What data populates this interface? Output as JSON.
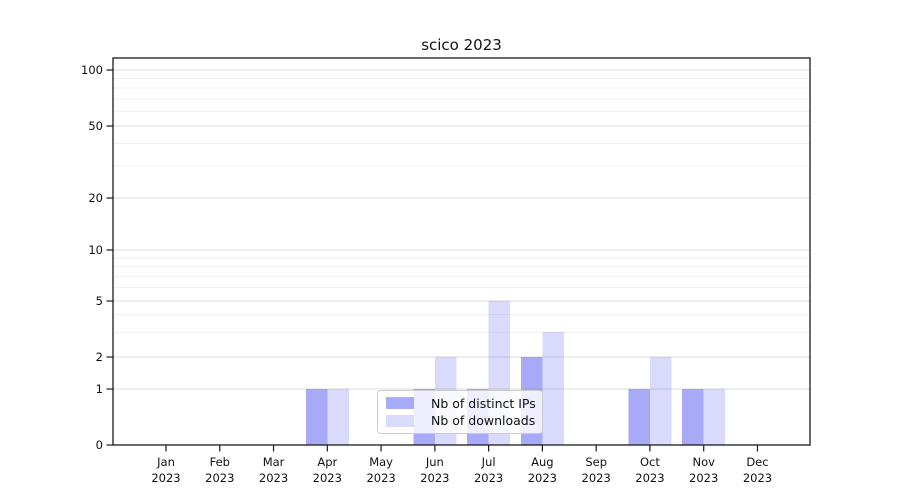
{
  "chart_data": {
    "type": "bar",
    "title": "scico 2023",
    "categories": [
      "Jan 2023",
      "Feb 2023",
      "Mar 2023",
      "Apr 2023",
      "May 2023",
      "Jun 2023",
      "Jul 2023",
      "Aug 2023",
      "Sep 2023",
      "Oct 2023",
      "Nov 2023",
      "Dec 2023"
    ],
    "series": [
      {
        "name": "Nb of distinct IPs",
        "swatch_hex": "#a8abf8",
        "fill": "rgba(90,95,240,0.53)",
        "values": [
          0,
          0,
          0,
          1,
          0,
          1,
          1,
          2,
          0,
          1,
          1,
          0
        ]
      },
      {
        "name": "Nb of downloads",
        "swatch_hex": "#d9dbfb",
        "fill": "rgba(90,95,240,0.23)",
        "values": [
          0,
          0,
          0,
          1,
          0,
          2,
          5,
          3,
          0,
          2,
          1,
          0
        ]
      }
    ],
    "yscale": "symlog",
    "yticks": [
      0,
      1,
      2,
      5,
      10,
      20,
      50,
      100
    ],
    "minor_gridlines": [
      3,
      4,
      6,
      7,
      8,
      9,
      30,
      40,
      60,
      70,
      80,
      90
    ],
    "ylim": [
      0,
      117
    ],
    "grid": true,
    "legend_position": "lower center",
    "colors": {
      "axis": "#1a1a1a",
      "grid_major": "#dbdbdb",
      "grid_minor": "#f0f0f0",
      "text": "#111111"
    }
  }
}
